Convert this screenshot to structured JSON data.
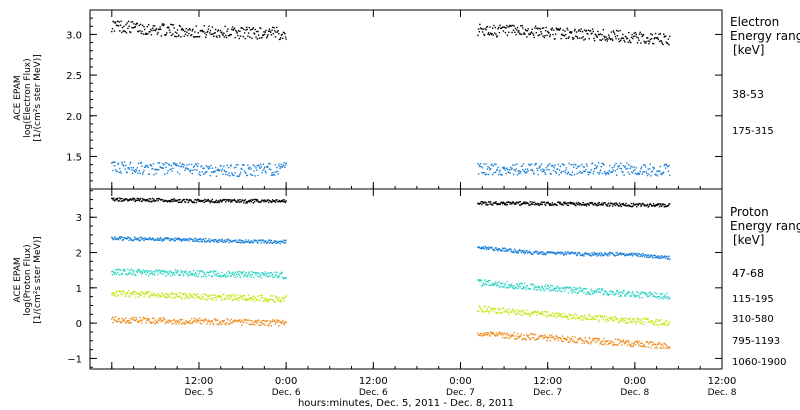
{
  "chart_data": [
    {
      "type": "scatter",
      "ylabel": [
        "ACE EPAM",
        "log(Electron Flux)",
        "[1/(cm²s ster MeV)]"
      ],
      "ylim": [
        1.1,
        3.3
      ],
      "yticks": [
        1.5,
        2.0,
        2.5,
        3.0
      ],
      "ytick_labels": [
        "1.5",
        "2.0",
        "2.5",
        "3.0"
      ],
      "legend_title": [
        "Electron",
        "Energy ranges",
        "[keV]"
      ],
      "legend_placement": "right",
      "grid": false,
      "series": [
        {
          "name": "38-53",
          "color": "#000000",
          "segments": [
            {
              "x": [
                0.0,
                0.2,
                0.4,
                0.6,
                0.8,
                1.0
              ],
              "y": [
                3.11,
                3.07,
                3.04,
                3.03,
                3.02,
                3.01
              ]
            },
            {
              "x": [
                2.1,
                2.4,
                2.6,
                2.8,
                3.0,
                3.2
              ],
              "y": [
                3.05,
                3.03,
                3.01,
                2.99,
                2.96,
                2.93
              ]
            }
          ]
        },
        {
          "name": "175-315",
          "color": "#1a7fd6",
          "segments": [
            {
              "x": [
                0.0,
                0.2,
                0.4,
                0.6,
                0.8,
                1.0
              ],
              "y": [
                1.37,
                1.35,
                1.35,
                1.33,
                1.33,
                1.35
              ]
            },
            {
              "x": [
                2.1,
                2.4,
                2.6,
                2.8,
                3.0,
                3.2
              ],
              "y": [
                1.34,
                1.34,
                1.34,
                1.35,
                1.34,
                1.33
              ]
            }
          ]
        }
      ]
    },
    {
      "type": "scatter",
      "ylabel": [
        "ACE EPAM",
        "log(Proton Flux)",
        "[1/(cm²s ster MeV)]"
      ],
      "ylim": [
        -1.3,
        3.8
      ],
      "yticks": [
        -1,
        0,
        1,
        2,
        3
      ],
      "ytick_labels": [
        "−1",
        "0",
        "1",
        "2",
        "3"
      ],
      "legend_title": [
        "Proton",
        "Energy ranges",
        "[keV]"
      ],
      "legend_placement": "right",
      "grid": false,
      "series": [
        {
          "name": "47-68",
          "color": "#000000",
          "segments": [
            {
              "x": [
                0.0,
                0.5,
                1.0
              ],
              "y": [
                3.5,
                3.46,
                3.45
              ]
            },
            {
              "x": [
                2.1,
                2.6,
                3.2
              ],
              "y": [
                3.4,
                3.38,
                3.33
              ]
            }
          ]
        },
        {
          "name": "115-195",
          "color": "#1a7fd6",
          "segments": [
            {
              "x": [
                0.0,
                0.5,
                1.0
              ],
              "y": [
                2.4,
                2.35,
                2.3
              ]
            },
            {
              "x": [
                2.1,
                2.4,
                2.7,
                3.0,
                3.2
              ],
              "y": [
                2.15,
                2.0,
                1.95,
                1.95,
                1.85
              ]
            }
          ]
        },
        {
          "name": "310-580",
          "color": "#2ad4c4",
          "segments": [
            {
              "x": [
                0.0,
                0.5,
                1.0
              ],
              "y": [
                1.45,
                1.4,
                1.35
              ]
            },
            {
              "x": [
                2.1,
                2.6,
                3.2
              ],
              "y": [
                1.15,
                0.95,
                0.75
              ]
            }
          ]
        },
        {
          "name": "795-1193",
          "color": "#c8e61a",
          "segments": [
            {
              "x": [
                0.0,
                0.5,
                1.0
              ],
              "y": [
                0.85,
                0.75,
                0.68
              ]
            },
            {
              "x": [
                2.1,
                2.6,
                3.2
              ],
              "y": [
                0.4,
                0.2,
                0.0
              ]
            }
          ]
        },
        {
          "name": "1060-1900",
          "color": "#f08c1e",
          "segments": [
            {
              "x": [
                0.0,
                0.5,
                1.0
              ],
              "y": [
                0.1,
                0.05,
                0.0
              ]
            },
            {
              "x": [
                2.1,
                2.6,
                3.2
              ],
              "y": [
                -0.3,
                -0.45,
                -0.65
              ]
            }
          ]
        }
      ]
    }
  ],
  "x_axis": {
    "xlim": [
      -0.125,
      3.5
    ],
    "xlabel": "hours:minutes, Dec.  5, 2011 - Dec.  8, 2011",
    "major_ticks": [
      0.0,
      0.5,
      1.0,
      1.5,
      2.0,
      2.5,
      3.0,
      3.5
    ],
    "tick_labels": [
      {
        "time": "12:00",
        "day": "Dec. 5"
      },
      {
        "time": "0:00",
        "day": "Dec. 6"
      },
      {
        "time": "12:00",
        "day": "Dec. 6"
      },
      {
        "time": "0:00",
        "day": "Dec. 7"
      },
      {
        "time": "12:00",
        "day": "Dec. 7"
      },
      {
        "time": "0:00",
        "day": "Dec. 8"
      },
      {
        "time": "12:00",
        "day": "Dec. 8"
      }
    ]
  }
}
